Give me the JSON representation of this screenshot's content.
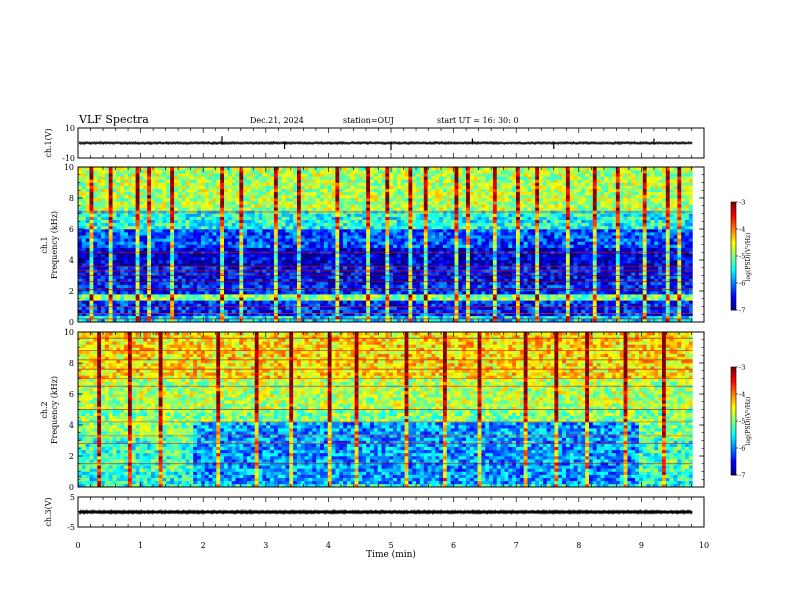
{
  "header": {
    "title": "VLF Spectra",
    "date": "Dec.21, 2024",
    "station": "station=OUJ",
    "start_time": "start  UT =   16: 30: 0"
  },
  "chart_data": [
    {
      "name": "ch1-waveform",
      "type": "line",
      "ylabel": "ch.1(V)",
      "ylim": [
        -10,
        10
      ],
      "yticks": [
        10,
        -10
      ],
      "ytick_labels": [
        "10",
        "-10"
      ],
      "xlim": [
        0,
        10
      ],
      "data_end_min": 9.82,
      "envelope": [
        -1.2,
        1.2
      ],
      "spikes": [
        {
          "x": 2.3,
          "y_min": -1.0,
          "y_max": 4.5
        },
        {
          "x": 3.3,
          "y_min": -4.0,
          "y_max": 1.0
        },
        {
          "x": 5.0,
          "y_min": -4.8,
          "y_max": 1.0
        },
        {
          "x": 7.6,
          "y_min": -4.0,
          "y_max": 1.0
        },
        {
          "x": 6.3,
          "y_min": -1.0,
          "y_max": 3.0
        },
        {
          "x": 9.2,
          "y_min": -1.0,
          "y_max": 3.0
        }
      ]
    },
    {
      "name": "ch1-spectrogram",
      "type": "heatmap",
      "ylabel": "Frequency  (kHz)",
      "channel_label": "ch.1",
      "ylim": [
        0,
        10
      ],
      "yticks": [
        0,
        2,
        4,
        6,
        8,
        10
      ],
      "xlim": [
        0,
        10
      ],
      "data_end_min": 9.82,
      "colorbar": {
        "label": "log(PSD)(V²/Hz)",
        "range": [
          -7,
          -3
        ],
        "ticks": [
          -3,
          -4,
          -5,
          -6,
          -7
        ],
        "tick_labels": [
          "-3",
          "-4",
          "-5",
          "-6",
          "-7"
        ]
      },
      "bands": [
        {
          "f_lo": 0.0,
          "f_hi": 0.3,
          "level": -5.6
        },
        {
          "f_lo": 0.3,
          "f_hi": 1.3,
          "level": -6.4
        },
        {
          "f_lo": 1.3,
          "f_hi": 1.7,
          "level": -5.0
        },
        {
          "f_lo": 1.7,
          "f_hi": 2.4,
          "level": -6.4
        },
        {
          "f_lo": 2.4,
          "f_hi": 3.6,
          "level": -6.5
        },
        {
          "f_lo": 3.6,
          "f_hi": 4.8,
          "level": -6.7
        },
        {
          "f_lo": 4.8,
          "f_hi": 5.9,
          "level": -6.2
        },
        {
          "f_lo": 5.9,
          "f_hi": 7.2,
          "level": -5.4
        },
        {
          "f_lo": 7.2,
          "f_hi": 10.0,
          "level": -4.8
        }
      ],
      "lines_khz": [
        0.2,
        0.55,
        1.0,
        2.1,
        2.6,
        3.0,
        3.3,
        3.6,
        4.5,
        7.1
      ],
      "bursts_min": [
        0.2,
        0.5,
        0.9,
        1.1,
        1.5,
        2.3,
        2.6,
        3.1,
        3.5,
        4.1,
        4.6,
        4.9,
        5.3,
        5.5,
        6.0,
        6.2,
        6.6,
        7.0,
        7.3,
        7.8,
        8.2,
        8.6,
        9.0,
        9.4,
        9.6
      ]
    },
    {
      "name": "ch2-spectrogram",
      "type": "heatmap",
      "ylabel": "Frequency  (kHz)",
      "channel_label": "ch.2",
      "ylim": [
        0,
        10
      ],
      "yticks": [
        0,
        2,
        4,
        6,
        8,
        10
      ],
      "xlim": [
        0,
        10
      ],
      "data_end_min": 9.82,
      "colorbar": {
        "label": "log(PSD)(V²/Hz)",
        "range": [
          -7,
          -3
        ],
        "ticks": [
          -3,
          -4,
          -5,
          -6,
          -7
        ],
        "tick_labels": [
          "-3",
          "-4",
          "-5",
          "-6",
          "-7"
        ]
      },
      "bands": [
        {
          "f_lo": 0.0,
          "f_hi": 1.0,
          "level": -5.4
        },
        {
          "f_lo": 1.0,
          "f_hi": 2.0,
          "level": -5.2
        },
        {
          "f_lo": 2.0,
          "f_hi": 3.2,
          "level": -5.3
        },
        {
          "f_lo": 3.2,
          "f_hi": 5.0,
          "level": -5.0
        },
        {
          "f_lo": 5.0,
          "f_hi": 7.0,
          "level": -4.8
        },
        {
          "f_lo": 7.0,
          "f_hi": 10.0,
          "level": -4.4
        }
      ],
      "quiet_zone": {
        "t_start": 1.8,
        "t_end": 8.9,
        "f_lo": 0.2,
        "f_hi": 4.2,
        "level": -5.9
      },
      "lines_khz": [
        1.5,
        2.8,
        3.3,
        4.2,
        5.0,
        6.5,
        7.0,
        7.6,
        8.2,
        8.8,
        9.6
      ],
      "bursts_min": [
        0.3,
        0.8,
        1.3,
        2.2,
        2.8,
        3.4,
        4.0,
        4.4,
        5.2,
        5.8,
        6.4,
        7.1,
        7.6,
        8.1,
        8.7,
        9.3
      ]
    },
    {
      "name": "ch3-waveform",
      "type": "line",
      "ylabel": "ch.3(V)",
      "ylim": [
        -5,
        5
      ],
      "yticks": [
        5,
        -5
      ],
      "ytick_labels": [
        "5",
        "-5"
      ],
      "xlim": [
        0,
        10
      ],
      "data_end_min": 9.82,
      "envelope": [
        -0.35,
        0.35
      ]
    }
  ],
  "x_axis": {
    "label": "Time  (min)",
    "ticks": [
      0,
      1,
      2,
      3,
      4,
      5,
      6,
      7,
      8,
      9,
      10
    ],
    "tick_labels": [
      "0",
      "1",
      "2",
      "3",
      "4",
      "5",
      "6",
      "7",
      "8",
      "9",
      "10"
    ]
  }
}
